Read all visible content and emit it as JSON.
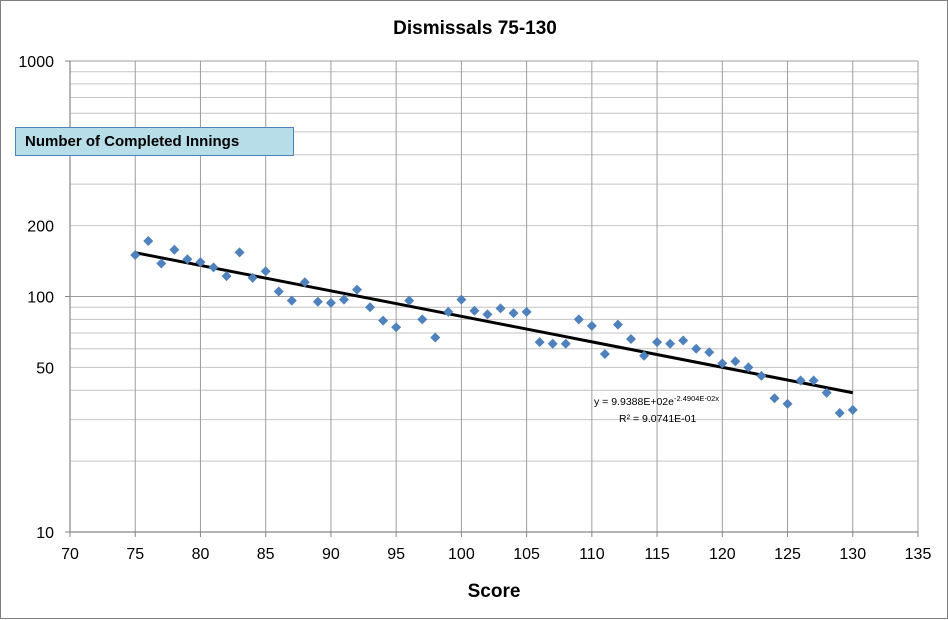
{
  "chart_data": {
    "type": "scatter",
    "title": "Dismissals 75-130",
    "xlabel": "Score",
    "ylabel": "",
    "legend_label": "Number of Completed Innings",
    "legend_placement": "top-left",
    "xlim": [
      70,
      135
    ],
    "ylim": [
      10,
      1000
    ],
    "y_scale": "log",
    "grid": true,
    "x_ticks": [
      70,
      75,
      80,
      85,
      90,
      95,
      100,
      105,
      110,
      115,
      120,
      125,
      130,
      135
    ],
    "y_tick_labels": [
      {
        "value": 10,
        "label": "10"
      },
      {
        "value": 50,
        "label": "50"
      },
      {
        "value": 100,
        "label": "100"
      },
      {
        "value": 200,
        "label": "200"
      },
      {
        "value": 1000,
        "label": "1000"
      }
    ],
    "marker_color": "#4f81bd",
    "trendline_color": "#000000",
    "x": [
      75,
      76,
      77,
      78,
      79,
      80,
      81,
      82,
      83,
      84,
      85,
      86,
      87,
      88,
      89,
      90,
      91,
      92,
      93,
      94,
      95,
      96,
      97,
      98,
      99,
      100,
      101,
      102,
      103,
      104,
      105,
      106,
      107,
      108,
      109,
      110,
      111,
      112,
      113,
      114,
      115,
      116,
      117,
      118,
      119,
      120,
      121,
      122,
      123,
      124,
      125,
      126,
      127,
      128,
      129,
      130
    ],
    "y": [
      150,
      172,
      138,
      158,
      144,
      140,
      133,
      122,
      154,
      120,
      128,
      105,
      96,
      115,
      95,
      94,
      97,
      107,
      90,
      79,
      74,
      96,
      80,
      67,
      86,
      97,
      87,
      84,
      89,
      85,
      86,
      64,
      63,
      63,
      80,
      75,
      57,
      76,
      66,
      56,
      64,
      63,
      65,
      60,
      58,
      52,
      53,
      50,
      46,
      37,
      35,
      44,
      44,
      39,
      32,
      33
    ],
    "trendline": {
      "type": "exponential",
      "a": 993.88,
      "b": -0.024904,
      "x_range": [
        75,
        130
      ],
      "equation_prefix": "y = 9.9388E+02e",
      "equation_exponent": "-2.4904E-02x",
      "r_squared_text": "R² = 9.0741E-01"
    }
  }
}
